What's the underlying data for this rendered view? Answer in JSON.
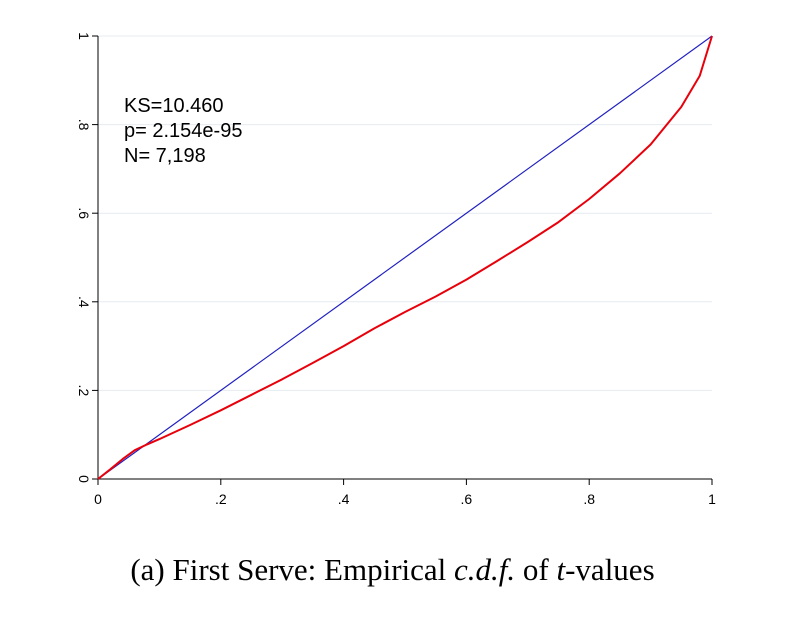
{
  "chart_data": {
    "type": "line",
    "xlim": [
      0,
      1
    ],
    "ylim": [
      0,
      1
    ],
    "x_ticks": [
      0,
      0.2,
      0.4,
      0.6,
      0.8,
      1
    ],
    "x_tick_labels": [
      "0",
      ".2",
      ".4",
      ".6",
      ".8",
      "1"
    ],
    "y_ticks": [
      0,
      0.2,
      0.4,
      0.6,
      0.8,
      1
    ],
    "y_tick_labels": [
      "0",
      ".2",
      ".4",
      ".6",
      ".8",
      "1"
    ],
    "grid": true,
    "legend": "none",
    "series": [
      {
        "color": "#2020c0",
        "x": [
          0,
          1
        ],
        "y": [
          0,
          1
        ]
      },
      {
        "color": "#e8000b",
        "x": [
          0,
          0.02,
          0.04,
          0.06,
          0.08,
          0.1,
          0.15,
          0.2,
          0.25,
          0.3,
          0.35,
          0.4,
          0.45,
          0.5,
          0.55,
          0.6,
          0.65,
          0.7,
          0.75,
          0.8,
          0.85,
          0.9,
          0.95,
          0.98,
          1
        ],
        "y": [
          0,
          0.022,
          0.045,
          0.065,
          0.078,
          0.09,
          0.122,
          0.155,
          0.19,
          0.225,
          0.262,
          0.3,
          0.34,
          0.377,
          0.412,
          0.45,
          0.492,
          0.535,
          0.58,
          0.632,
          0.69,
          0.755,
          0.84,
          0.91,
          1
        ]
      }
    ],
    "annotations": [
      "KS=10.460",
      "p= 2.154e-95",
      "N= 7,198"
    ]
  },
  "caption": {
    "label": "(a) First Serve: Empirical ",
    "cdf": "c.d.f.",
    "of": " of ",
    "t": "t",
    "tail": "-values"
  }
}
